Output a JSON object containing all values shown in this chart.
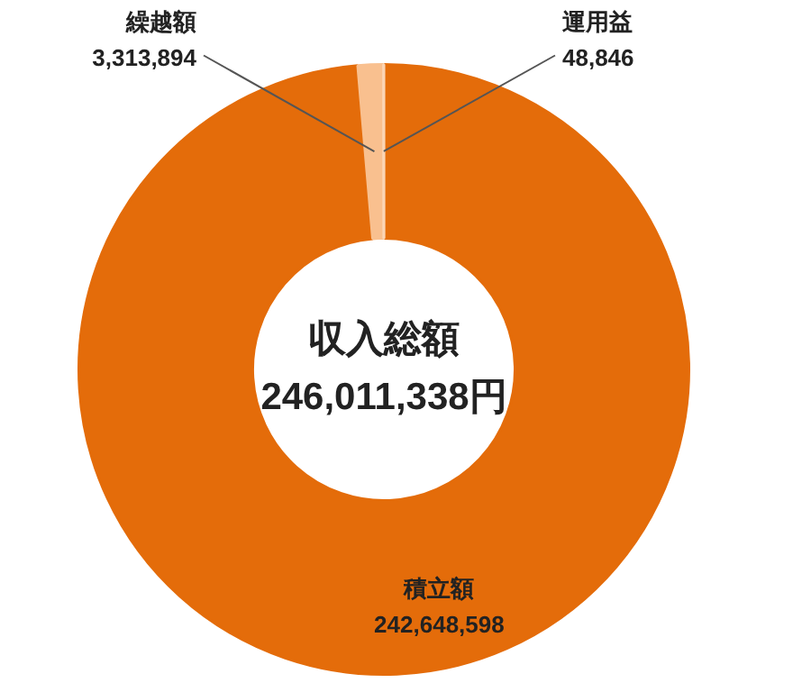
{
  "chart_data": {
    "type": "donut",
    "title": "収入総額",
    "subtitle": "246,011,338円",
    "categories": [
      "積立額",
      "繰越額",
      "運用益"
    ],
    "values": [
      242648598,
      3313894,
      48846
    ],
    "colors": [
      "#e46c0a",
      "#f9c08f",
      "#fbd5b5"
    ],
    "value_labels": [
      "242,648,598",
      "3,313,894",
      "48,846"
    ],
    "legend": false
  }
}
